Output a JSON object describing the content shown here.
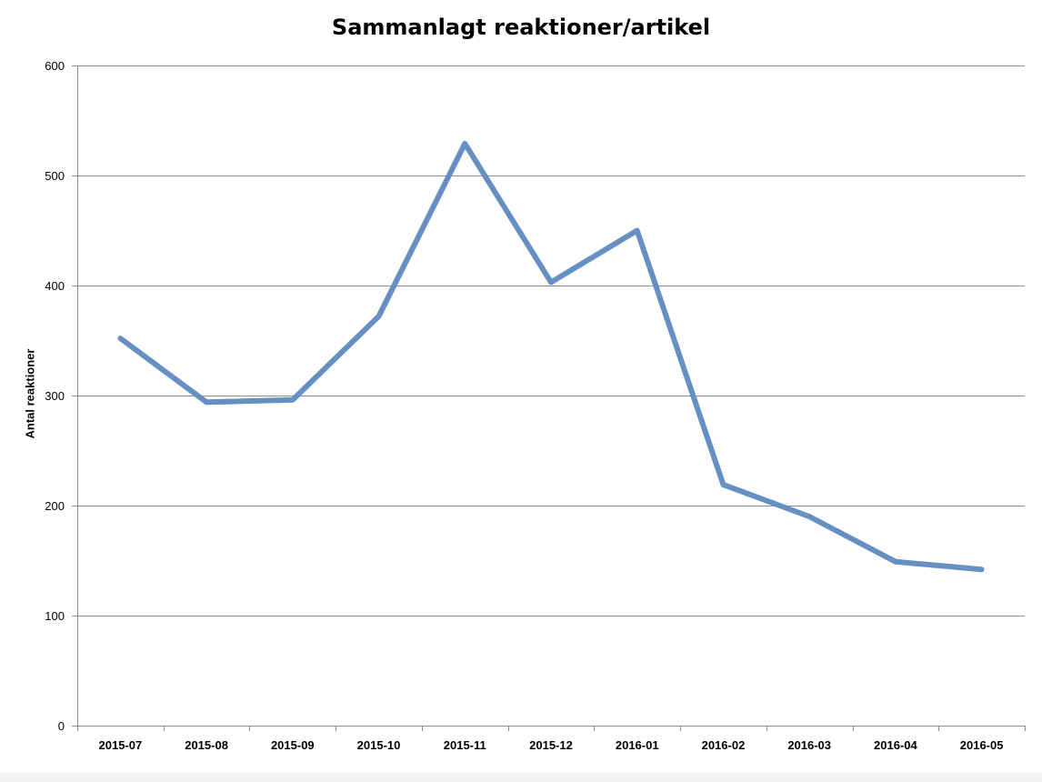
{
  "chart_data": {
    "type": "line",
    "title": "Sammanlagt reaktioner/artikel",
    "xlabel": "",
    "ylabel": "Antal reaktioner",
    "categories": [
      "2015-07",
      "2015-08",
      "2015-09",
      "2015-10",
      "2015-11",
      "2015-12",
      "2016-01",
      "2016-02",
      "2016-03",
      "2016-04",
      "2016-05"
    ],
    "series": [
      {
        "values": [
          352,
          294,
          296,
          372,
          529,
          403,
          450,
          219,
          190,
          149,
          142
        ],
        "color": "#6690c2"
      }
    ],
    "ylim": [
      0,
      600
    ],
    "yticks": [
      0,
      100,
      200,
      300,
      400,
      500,
      600
    ],
    "grid": true,
    "legend": "none"
  }
}
